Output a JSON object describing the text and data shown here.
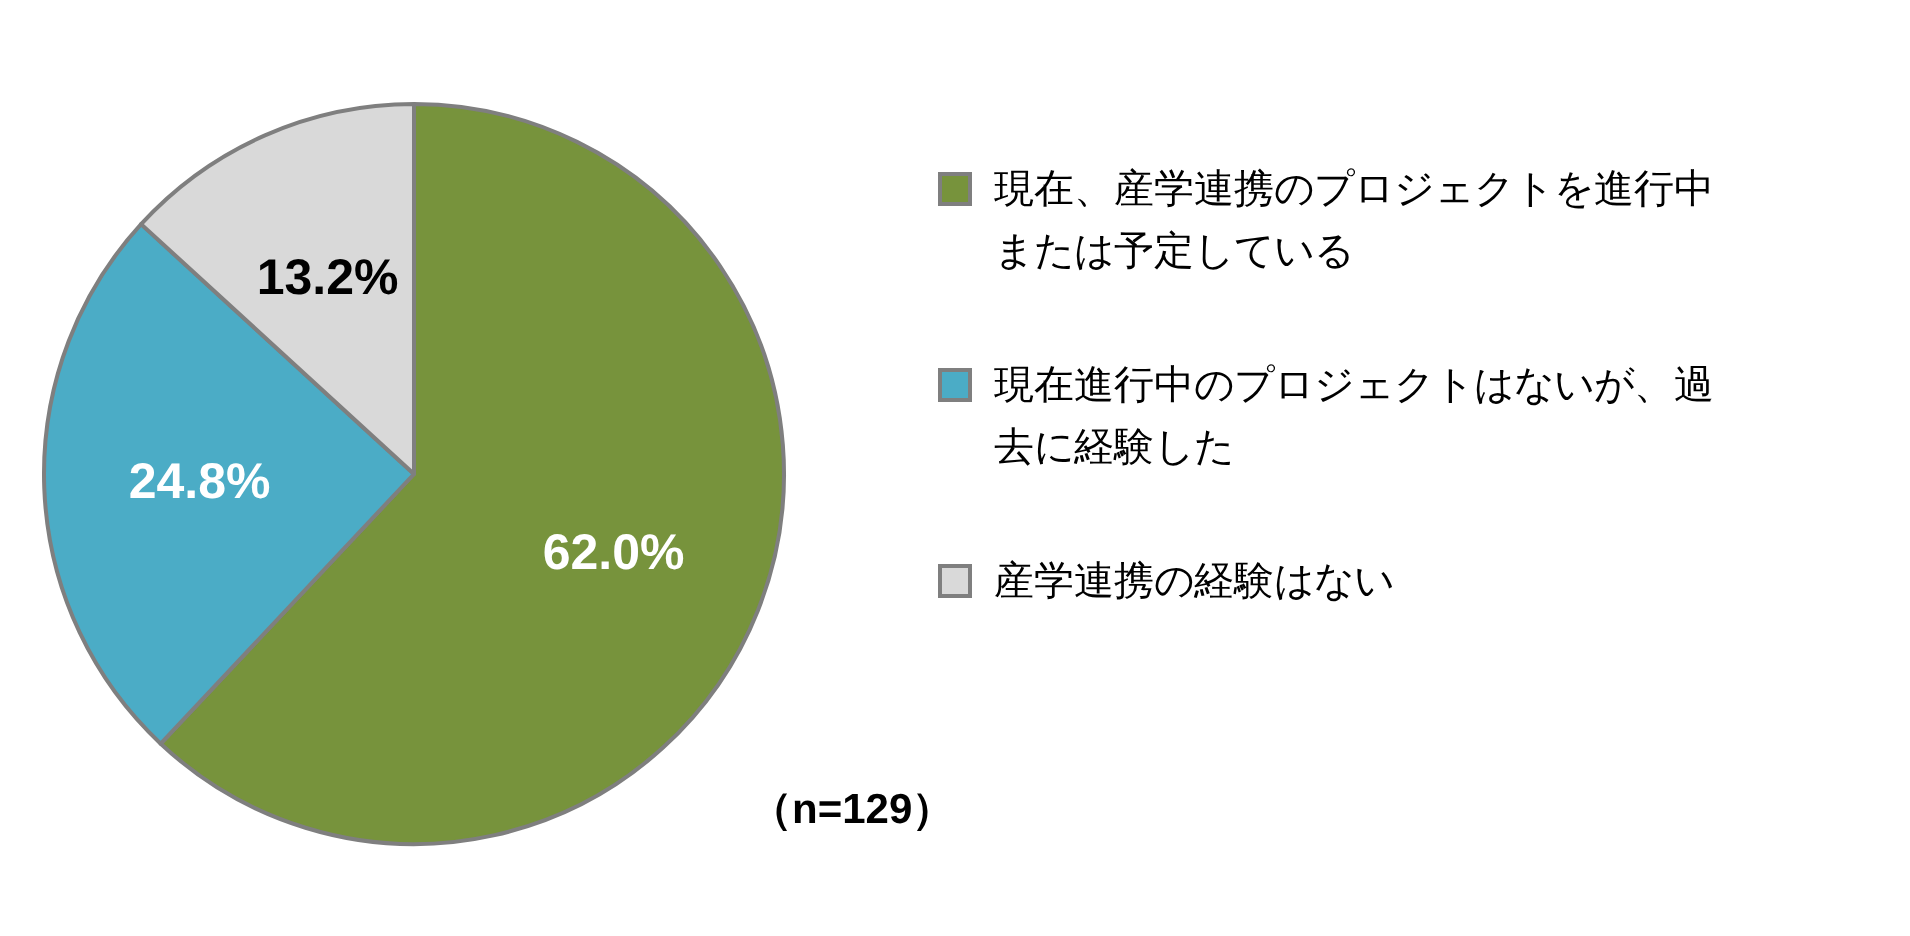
{
  "chart_data": {
    "type": "pie",
    "categories": [
      "現在、産学連携のプロジェクトを進行中または予定している",
      "現在進行中のプロジェクトはないが、過去に経験した",
      "産学連携の経験はない"
    ],
    "values": [
      62.0,
      24.8,
      13.2
    ],
    "value_labels": [
      "62.0%",
      "24.8%",
      "13.2%"
    ],
    "colors": [
      "#77933c",
      "#4bacc6",
      "#d9d9d9"
    ],
    "legend": "right",
    "annotations": [
      "（n=129）"
    ]
  }
}
